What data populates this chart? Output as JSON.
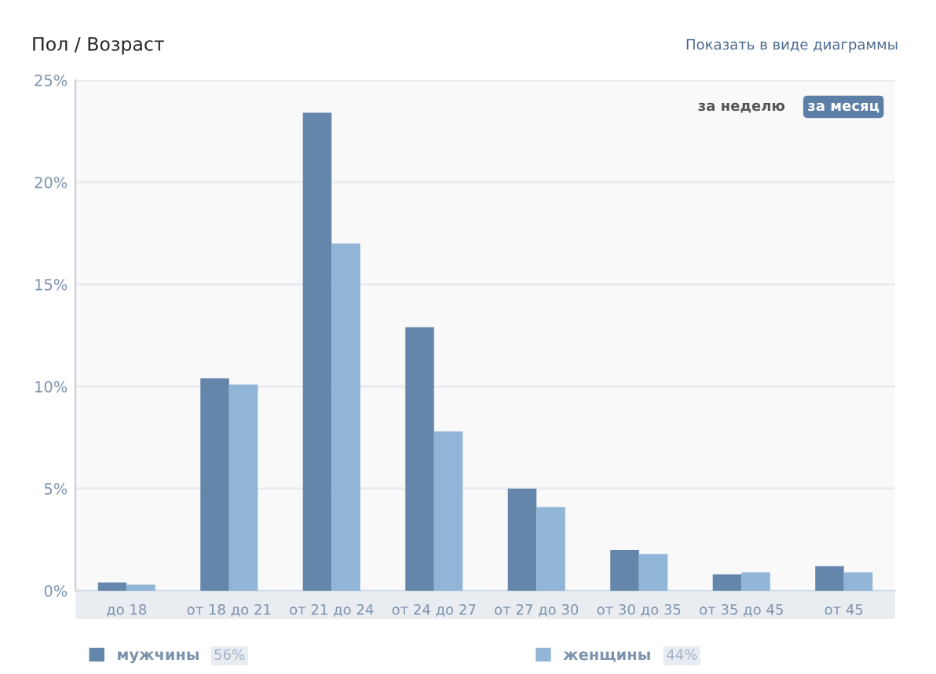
{
  "chart_data": {
    "type": "bar",
    "title": "Пол / Возраст",
    "categories": [
      "до 18",
      "от 18 до 21",
      "от 21 до 24",
      "от 24 до 27",
      "от 27 до 30",
      "от 30 до 35",
      "от 35 до 45",
      "от 45"
    ],
    "series": [
      {
        "name": "мужчины",
        "color": "#6586ab",
        "values": [
          0.4,
          10.4,
          23.4,
          12.9,
          5.0,
          2.0,
          0.8,
          1.2
        ]
      },
      {
        "name": "женщины",
        "color": "#91b5d6",
        "values": [
          0.3,
          10.1,
          17.0,
          7.8,
          4.1,
          1.8,
          0.9,
          0.9
        ]
      }
    ],
    "ylim": [
      0,
      25
    ],
    "yticks": [
      {
        "value": 0,
        "label": "0%"
      },
      {
        "value": 5,
        "label": "5%"
      },
      {
        "value": 10,
        "label": "10%"
      },
      {
        "value": 15,
        "label": "15%"
      },
      {
        "value": 20,
        "label": "20%"
      },
      {
        "value": 25,
        "label": "25%"
      }
    ],
    "grid": "y",
    "legend": "bottom",
    "annotations": [
      "Показать в виде диаграммы",
      "за неделю",
      "за месяц",
      "56%",
      "44%"
    ]
  }
}
